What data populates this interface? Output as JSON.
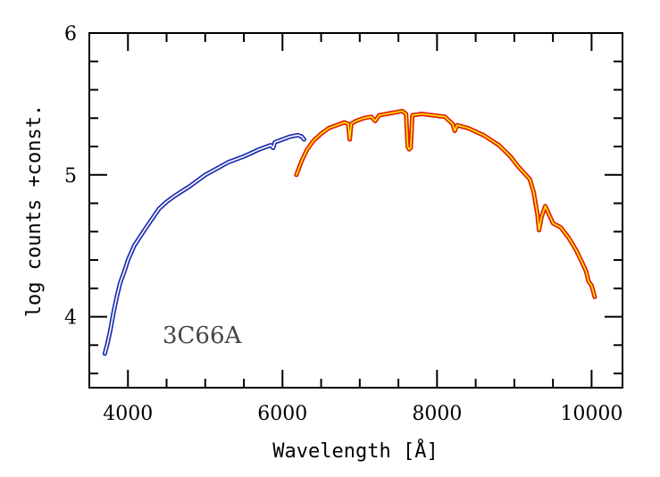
{
  "chart_data": {
    "type": "line",
    "xlabel": "Wavelength [Å]",
    "ylabel": "log counts +const.",
    "xlim": [
      3500,
      10400
    ],
    "ylim": [
      3.5,
      6.0
    ],
    "x_ticks": [
      "4000",
      "6000",
      "8000",
      "10000"
    ],
    "y_ticks": [
      "4",
      "5",
      "6"
    ],
    "annotation": "3C66A",
    "grid": false,
    "series": [
      {
        "color": "#1f2fb0",
        "inner_color": "#ffffff",
        "points": [
          [
            3700,
            3.74
          ],
          [
            3730,
            3.8
          ],
          [
            3770,
            3.9
          ],
          [
            3810,
            4.02
          ],
          [
            3860,
            4.15
          ],
          [
            3900,
            4.24
          ],
          [
            3960,
            4.33
          ],
          [
            4000,
            4.4
          ],
          [
            4080,
            4.5
          ],
          [
            4200,
            4.6
          ],
          [
            4300,
            4.68
          ],
          [
            4400,
            4.76
          ],
          [
            4500,
            4.81
          ],
          [
            4600,
            4.85
          ],
          [
            4800,
            4.92
          ],
          [
            5000,
            5.0
          ],
          [
            5200,
            5.06
          ],
          [
            5300,
            5.09
          ],
          [
            5500,
            5.13
          ],
          [
            5700,
            5.18
          ],
          [
            5850,
            5.21
          ],
          [
            5880,
            5.19
          ],
          [
            5900,
            5.23
          ],
          [
            6000,
            5.25
          ],
          [
            6100,
            5.27
          ],
          [
            6200,
            5.28
          ],
          [
            6250,
            5.27
          ],
          [
            6280,
            5.25
          ]
        ]
      },
      {
        "color": "#e0200a",
        "inner_color": "#ffee00",
        "points": [
          [
            6180,
            5.0
          ],
          [
            6250,
            5.1
          ],
          [
            6320,
            5.18
          ],
          [
            6400,
            5.24
          ],
          [
            6500,
            5.29
          ],
          [
            6600,
            5.33
          ],
          [
            6700,
            5.35
          ],
          [
            6800,
            5.37
          ],
          [
            6850,
            5.36
          ],
          [
            6870,
            5.25
          ],
          [
            6890,
            5.36
          ],
          [
            6950,
            5.38
          ],
          [
            7050,
            5.4
          ],
          [
            7150,
            5.41
          ],
          [
            7200,
            5.38
          ],
          [
            7250,
            5.42
          ],
          [
            7350,
            5.43
          ],
          [
            7450,
            5.44
          ],
          [
            7550,
            5.45
          ],
          [
            7600,
            5.43
          ],
          [
            7620,
            5.2
          ],
          [
            7640,
            5.18
          ],
          [
            7660,
            5.19
          ],
          [
            7680,
            5.42
          ],
          [
            7800,
            5.43
          ],
          [
            7950,
            5.42
          ],
          [
            8100,
            5.41
          ],
          [
            8200,
            5.36
          ],
          [
            8230,
            5.31
          ],
          [
            8260,
            5.35
          ],
          [
            8400,
            5.33
          ],
          [
            8600,
            5.28
          ],
          [
            8800,
            5.21
          ],
          [
            8950,
            5.13
          ],
          [
            9050,
            5.06
          ],
          [
            9150,
            5.0
          ],
          [
            9200,
            4.97
          ],
          [
            9250,
            4.88
          ],
          [
            9300,
            4.72
          ],
          [
            9320,
            4.61
          ],
          [
            9350,
            4.7
          ],
          [
            9400,
            4.78
          ],
          [
            9450,
            4.72
          ],
          [
            9500,
            4.66
          ],
          [
            9600,
            4.63
          ],
          [
            9700,
            4.56
          ],
          [
            9800,
            4.47
          ],
          [
            9880,
            4.38
          ],
          [
            9930,
            4.32
          ],
          [
            9960,
            4.25
          ],
          [
            10000,
            4.22
          ],
          [
            10040,
            4.14
          ]
        ]
      }
    ]
  }
}
